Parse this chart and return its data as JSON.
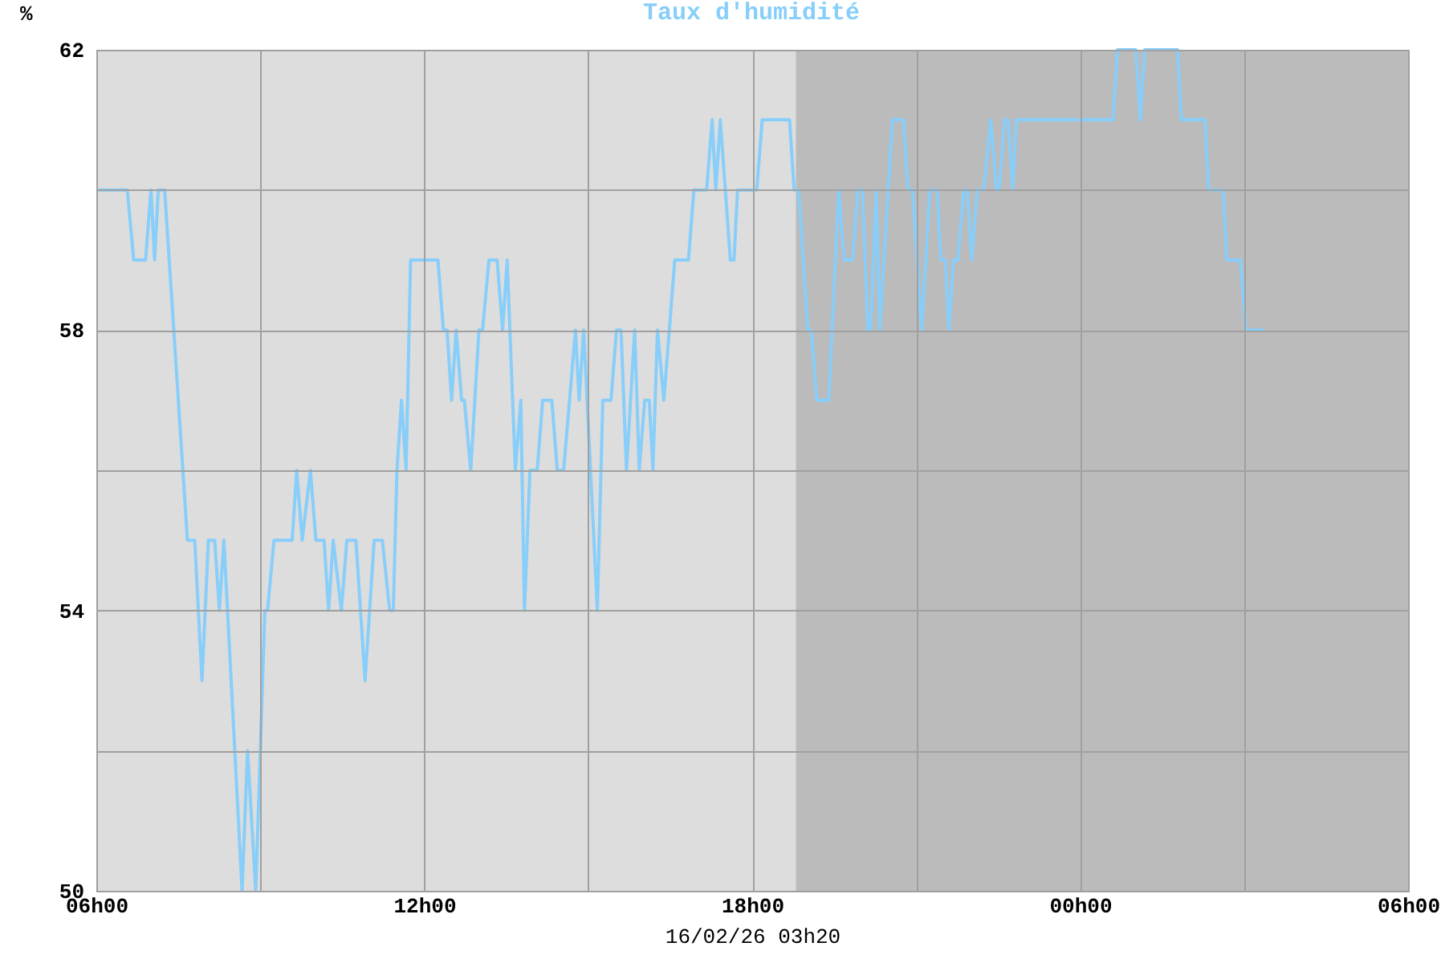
{
  "chart_data": {
    "type": "line",
    "title": "Taux d'humidité",
    "xlabel": "16/02/26 03h20",
    "ylabel": "%",
    "x": [
      "--02-15T06:00",
      "--02-15T06:34",
      "--02-15T06:41",
      "--02-15T06:54",
      "--02-15T07:00",
      "--02-15T07:04",
      "--02-15T07:08",
      "--02-15T07:15",
      "--02-15T07:40",
      "--02-15T07:48",
      "--02-15T07:56",
      "--02-15T08:03",
      "--02-15T08:10",
      "--02-15T08:15",
      "--02-15T08:20",
      "--02-15T08:40",
      "--02-15T08:46",
      "--02-15T08:55",
      "--02-15T09:05",
      "--02-15T09:08",
      "--02-15T09:15",
      "--02-15T09:35",
      "--02-15T09:40",
      "--02-15T09:46",
      "--02-15T09:55",
      "--02-15T10:01",
      "--02-15T10:10",
      "--02-15T10:15",
      "--02-15T10:20",
      "--02-15T10:29",
      "--02-15T10:35",
      "--02-15T10:45",
      "--02-15T10:55",
      "--02-15T11:05",
      "--02-15T11:14",
      "--02-15T11:22",
      "--02-15T11:26",
      "--02-15T11:30",
      "--02-15T11:35",
      "--02-15T11:40",
      "--02-15T11:45",
      "--02-15T12:15",
      "--02-15T12:21",
      "--02-15T12:25",
      "--02-15T12:30",
      "--02-15T12:35",
      "--02-15T12:41",
      "--02-15T12:44",
      "--02-15T12:51",
      "--02-15T13:00",
      "--02-15T13:04",
      "--02-15T13:11",
      "--02-15T13:20",
      "--02-15T13:26",
      "--02-15T13:31",
      "--02-15T13:40",
      "--02-15T13:46",
      "--02-15T13:50",
      "--02-15T13:56",
      "--02-15T14:04",
      "--02-15T14:10",
      "--02-15T14:20",
      "--02-15T14:26",
      "--02-15T14:33",
      "--02-15T14:46",
      "--02-15T14:50",
      "--02-15T14:55",
      "--02-15T15:10",
      "--02-15T15:16",
      "--02-15T15:25",
      "--02-15T15:31",
      "--02-15T15:36",
      "--02-15T15:42",
      "--02-15T15:51",
      "--02-15T15:56",
      "--02-15T16:02",
      "--02-15T16:07",
      "--02-15T16:11",
      "--02-15T16:16",
      "--02-15T16:23",
      "--02-15T16:35",
      "--02-15T16:50",
      "--02-15T16:56",
      "--02-15T17:10",
      "--02-15T17:16",
      "--02-15T17:20",
      "--02-15T17:25",
      "--02-15T17:36",
      "--02-15T17:40",
      "--02-15T17:44",
      "--02-15T18:05",
      "--02-15T18:11",
      "--02-15T18:41",
      "--02-15T18:46",
      "--02-15T18:51",
      "--02-15T19:01",
      "--02-15T19:05",
      "--02-15T19:11",
      "--02-15T19:24",
      "--02-15T19:35",
      "--02-15T19:41",
      "--02-15T19:50",
      "--02-15T19:56",
      "--02-15T20:01",
      "--02-15T20:07",
      "--02-15T20:10",
      "--02-15T20:16",
      "--02-15T20:20",
      "--02-15T20:34",
      "--02-15T20:46",
      "--02-15T20:51",
      "--02-15T20:56",
      "--02-15T21:06",
      "--02-15T21:15",
      "--02-15T21:23",
      "--02-15T21:27",
      "--02-15T21:32",
      "--02-15T21:36",
      "--02-15T21:41",
      "--02-15T21:46",
      "--02-15T21:52",
      "--02-15T21:56",
      "--02-15T22:01",
      "--02-15T22:07",
      "--02-15T22:14",
      "--02-15T22:22",
      "--02-15T22:28",
      "--02-15T22:31",
      "--02-15T22:37",
      "--02-15T22:41",
      "--02-15T22:46",
      "--02-15T22:50",
      "--02-16T00:36",
      "--02-16T00:41",
      "--02-16T01:01",
      "--02-16T01:06",
      "--02-16T01:11",
      "--02-16T01:47",
      "--02-16T01:51",
      "--02-16T02:17",
      "--02-16T02:21",
      "--02-16T02:37",
      "--02-16T02:41",
      "--02-16T02:56",
      "--02-16T03:02",
      "--02-16T03:21"
    ],
    "series": [
      {
        "color": "#87cefa",
        "values": [
          60,
          60,
          59,
          59,
          60,
          59,
          60,
          60,
          55,
          55,
          53,
          55,
          55,
          54,
          55,
          50,
          52,
          50,
          54,
          54,
          55,
          55,
          56,
          55,
          56,
          55,
          55,
          54,
          55,
          54,
          55,
          55,
          53,
          55,
          55,
          54,
          54,
          56,
          57,
          56,
          59,
          59,
          58,
          58,
          57,
          58,
          57,
          57,
          56,
          58,
          58,
          59,
          59,
          58,
          59,
          56,
          57,
          54,
          56,
          56,
          57,
          57,
          56,
          56,
          58,
          57,
          58,
          54,
          57,
          57,
          58,
          58,
          56,
          58,
          56,
          57,
          57,
          56,
          58,
          57,
          59,
          59,
          60,
          60,
          61,
          60,
          61,
          59,
          59,
          60,
          60,
          61,
          61,
          60,
          60,
          58,
          58,
          57,
          57,
          60,
          59,
          59,
          60,
          60,
          58,
          58,
          60,
          58,
          61,
          61,
          60,
          60,
          58,
          60,
          60,
          59,
          59,
          58,
          59,
          59,
          60,
          60,
          59,
          60,
          60,
          61,
          60,
          60,
          61,
          61,
          60,
          61,
          61,
          62,
          62,
          61,
          62,
          62,
          61,
          61,
          60,
          60,
          59,
          59,
          58,
          58
        ]
      }
    ],
    "xlim": [
      "--02-15T06:00",
      "--02-16T06:00"
    ],
    "xticks": [
      {
        "value": "--02-15T06:00",
        "label": "06h00"
      },
      {
        "value": "--02-15T09:00",
        "label": null
      },
      {
        "value": "--02-15T12:00",
        "label": "12h00"
      },
      {
        "value": "--02-15T15:00",
        "label": null
      },
      {
        "value": "--02-15T18:00",
        "label": "18h00"
      },
      {
        "value": "--02-15T21:00",
        "label": null
      },
      {
        "value": "--02-16T00:00",
        "label": "00h00"
      },
      {
        "value": "--02-16T03:00",
        "label": null
      },
      {
        "value": "--02-16T06:00",
        "label": "06h00"
      }
    ],
    "ylim": [
      50,
      62
    ],
    "yticks": [
      50,
      {
        "value": 52,
        "label": null
      },
      54,
      {
        "value": 56,
        "label": null
      },
      58,
      {
        "value": 60,
        "label": null
      },
      62
    ],
    "bands": [
      {
        "axis": "x",
        "from": "--02-15T18:48",
        "to": "--02-16T06:00",
        "color": "#bbbbbb"
      }
    ],
    "grid": true,
    "marker": "none",
    "line_style": "solid"
  }
}
